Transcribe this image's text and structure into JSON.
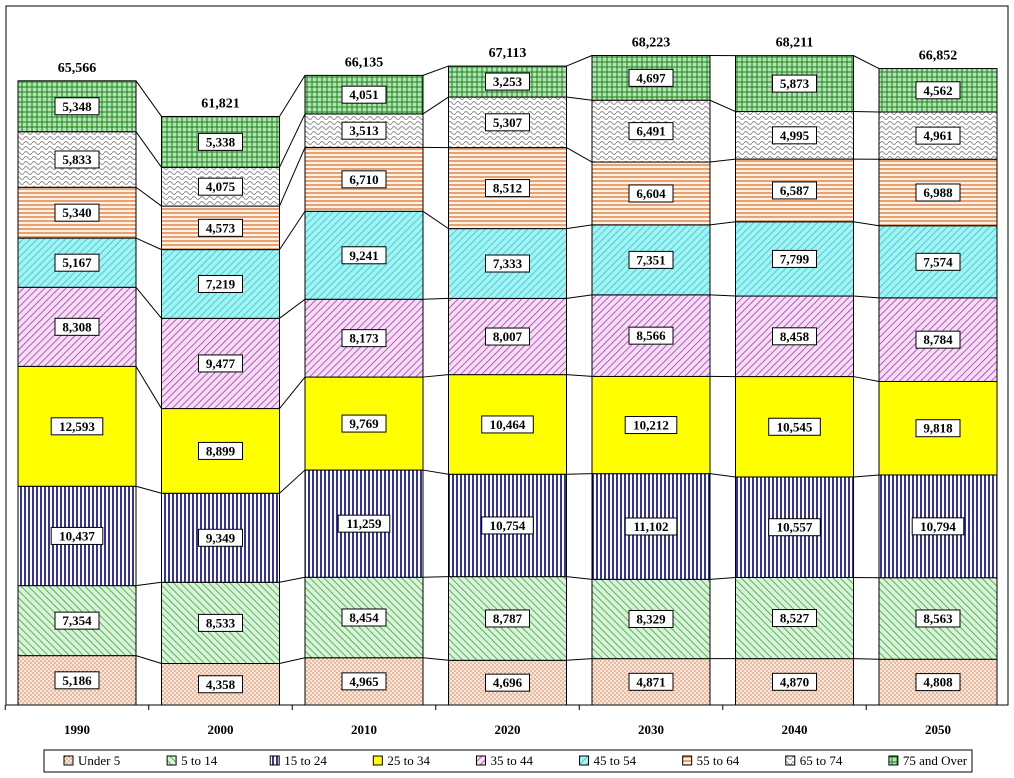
{
  "chart_data": {
    "type": "bar",
    "stacked": true,
    "categories": [
      "1990",
      "2000",
      "2010",
      "2020",
      "2030",
      "2040",
      "2050"
    ],
    "totals": [
      "65,566",
      "61,821",
      "66,135",
      "67,113",
      "68,223",
      "68,211",
      "66,852"
    ],
    "series": [
      {
        "name": "Under 5",
        "values": [
          5186,
          4358,
          4965,
          4696,
          4871,
          4870,
          4808
        ],
        "labels": [
          "5,186",
          "4,358",
          "4,965",
          "4,696",
          "4,871",
          "4,870",
          "4,808"
        ],
        "color": "#f8d8c8",
        "pattern": "dots"
      },
      {
        "name": "5 to 14",
        "values": [
          7354,
          8533,
          8454,
          8787,
          8329,
          8527,
          8563
        ],
        "labels": [
          "7,354",
          "8,533",
          "8,454",
          "8,787",
          "8,329",
          "8,527",
          "8,563"
        ],
        "color": "#c8f0c8",
        "pattern": "diag-green"
      },
      {
        "name": "15 to 24",
        "values": [
          10437,
          9349,
          11259,
          10754,
          11102,
          10557,
          10794
        ],
        "labels": [
          "10,437",
          "9,349",
          "11,259",
          "10,754",
          "11,102",
          "10,557",
          "10,794"
        ],
        "color": "#ffffff",
        "pattern": "vlines-navy"
      },
      {
        "name": "25 to 34",
        "values": [
          12593,
          8899,
          9769,
          10464,
          10212,
          10545,
          9818
        ],
        "labels": [
          "12,593",
          "8,899",
          "9,769",
          "10,464",
          "10,212",
          "10,545",
          "9,818"
        ],
        "color": "#ffff00",
        "pattern": "solid"
      },
      {
        "name": "35 to 44",
        "values": [
          8308,
          9477,
          8173,
          8007,
          8566,
          8458,
          8784
        ],
        "labels": [
          "8,308",
          "9,477",
          "8,173",
          "8,007",
          "8,566",
          "8,458",
          "8,784"
        ],
        "color": "#f0c8f0",
        "pattern": "diag-purple"
      },
      {
        "name": "45 to 54",
        "values": [
          5167,
          7219,
          9241,
          7333,
          7351,
          7799,
          7574
        ],
        "labels": [
          "5,167",
          "7,219",
          "9,241",
          "7,333",
          "7,351",
          "7,799",
          "7,574"
        ],
        "color": "#80f0f0",
        "pattern": "diag-cyan"
      },
      {
        "name": "55 to 64",
        "values": [
          5340,
          4573,
          6710,
          8512,
          6604,
          6587,
          6988
        ],
        "labels": [
          "5,340",
          "4,573",
          "6,710",
          "8,512",
          "6,604",
          "6,587",
          "6,988"
        ],
        "color": "#fde8d0",
        "pattern": "hlines-orange"
      },
      {
        "name": "65 to 74",
        "values": [
          5833,
          4075,
          3513,
          5307,
          6491,
          4995,
          4961
        ],
        "labels": [
          "5,833",
          "4,075",
          "3,513",
          "5,307",
          "6,491",
          "4,995",
          "4,961"
        ],
        "color": "#ffffff",
        "pattern": "wave-gray"
      },
      {
        "name": "75 and Over",
        "values": [
          5348,
          5338,
          4051,
          3253,
          4697,
          5873,
          4562
        ],
        "labels": [
          "5,348",
          "5,338",
          "4,051",
          "3,253",
          "4,697",
          "5,873",
          "4,562"
        ],
        "color": "#90d890",
        "pattern": "grid-green"
      }
    ],
    "legend_placement": "bottom"
  }
}
